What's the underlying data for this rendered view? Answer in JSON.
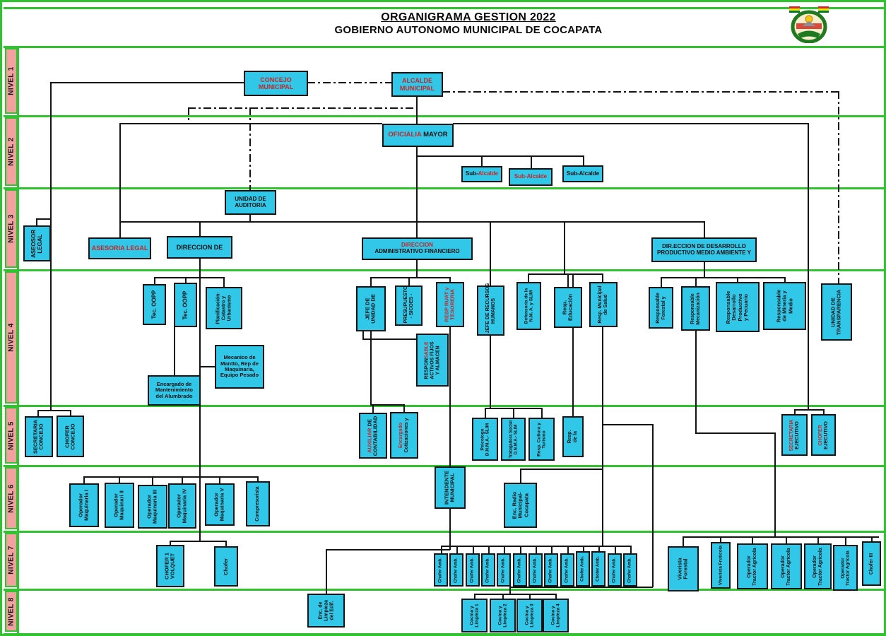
{
  "header": {
    "title_line1": "ORGANIGRAMA GESTION 2022",
    "title_line2": "GOBIERNO AUTONOMO MUNICIPAL DE COCAPATA"
  },
  "logo": {
    "name": "escudo-municipal-cocapata"
  },
  "levels": [
    "NIVEL 1",
    "NIVEL 2",
    "NIVEL 3",
    "NIVEL 4",
    "NIVEL 5",
    "NIVEL 6",
    "NIVEL 7",
    "NIVEL 8"
  ],
  "palette": {
    "box_fill": "#31c7e8",
    "box_border": "#141414",
    "level_fill": "#f2a0a0",
    "grid_green": "#2fc42f",
    "text_red": "#c62828",
    "text_black": "#101010"
  },
  "nodes": [
    {
      "id": "concejo-municipal",
      "l": [
        [
          [
            "CONCEJO",
            "r"
          ]
        ],
        [
          [
            "MUNICIPAL",
            "r"
          ]
        ]
      ]
    },
    {
      "id": "alcalde-municipal",
      "l": [
        [
          [
            "ALCALDE",
            "r"
          ]
        ],
        [
          [
            "MUNICIPAL",
            "r"
          ]
        ]
      ]
    },
    {
      "id": "oficialia-mayor",
      "l": [
        [
          [
            "OFICIALIA ",
            "r"
          ],
          [
            "MAYOR",
            "k"
          ]
        ]
      ]
    },
    {
      "id": "sub-alcalde-1",
      "l": [
        [
          [
            "Sub-",
            "k"
          ],
          [
            "Alcalde",
            "r"
          ]
        ]
      ]
    },
    {
      "id": "sub-alcalde-2",
      "l": [
        [
          [
            "Sub-Alcalde",
            "r"
          ]
        ]
      ]
    },
    {
      "id": "sub-alcalde-3",
      "l": [
        [
          [
            "Sub-Alcalde",
            "k"
          ]
        ]
      ]
    },
    {
      "id": "asesor-legal",
      "l": [
        [
          [
            "ASEOSOR",
            "k"
          ]
        ],
        [
          [
            "LEGAL",
            "k"
          ]
        ]
      ]
    },
    {
      "id": "asesoria-legal",
      "l": [
        [
          [
            "ASESORIA LEGAL",
            "r"
          ]
        ]
      ]
    },
    {
      "id": "direccion-de",
      "l": [
        [
          [
            "DIRECCION DE",
            "k"
          ]
        ]
      ]
    },
    {
      "id": "unidad-auditoria",
      "l": [
        [
          [
            "UNIDAD DE",
            "k"
          ]
        ],
        [
          [
            "AUDITORIA",
            "k"
          ]
        ]
      ]
    },
    {
      "id": "direccion-adm-financiero",
      "l": [
        [
          [
            "DIRECCION",
            "r"
          ]
        ],
        [
          [
            "ADMINISTRATIVO FINANCIERO",
            "k"
          ]
        ]
      ]
    },
    {
      "id": "direccion-desarrollo",
      "l": [
        [
          [
            "DIR.ECCION DE DESARROLLO",
            "k"
          ]
        ],
        [
          [
            "PRODUCTIVO MEDIO  AMBIENTE Y",
            "k"
          ]
        ]
      ]
    },
    {
      "id": "tec-oopp-1",
      "l": [
        [
          [
            "Tec. OOPP",
            "k"
          ]
        ]
      ]
    },
    {
      "id": "tec-oopp-2",
      "l": [
        [
          [
            "Tec. OOPP",
            "k"
          ]
        ]
      ]
    },
    {
      "id": "planificacion-catastro",
      "l": [
        [
          [
            "Planificación-",
            "k"
          ]
        ],
        [
          [
            "Catastro y",
            "k"
          ]
        ],
        [
          [
            "Urbanismo",
            "k"
          ]
        ]
      ]
    },
    {
      "id": "mecanico-mantto",
      "l": [
        [
          [
            "Mecanico de",
            "k"
          ]
        ],
        [
          [
            "Mantto,  Rep de",
            "k"
          ]
        ],
        [
          [
            "Maquinaria,",
            "k"
          ]
        ],
        [
          [
            "Equipo Pesado",
            "k"
          ]
        ]
      ]
    },
    {
      "id": "encargado-alumbrado",
      "l": [
        [
          [
            "Encargado de",
            "k"
          ]
        ],
        [
          [
            "Mantenimiento",
            "k"
          ]
        ],
        [
          [
            "del Alumbrado",
            "k"
          ]
        ]
      ]
    },
    {
      "id": "jefe-unidad",
      "l": [
        [
          [
            "JEFE DE",
            "k"
          ]
        ],
        [
          [
            "UNIDAD DE",
            "k"
          ]
        ]
      ]
    },
    {
      "id": "presupuesto-sicoes",
      "l": [
        [
          [
            "PRESUPUESTO",
            "k"
          ]
        ],
        [
          [
            "-  SICOES -",
            "k"
          ]
        ]
      ]
    },
    {
      "id": "resp-ruat-tesoreria",
      "l": [
        [
          [
            "RESP RUAT y",
            "r"
          ]
        ],
        [
          [
            "TESORERIA",
            "r"
          ]
        ]
      ]
    },
    {
      "id": "jefe-rrhh",
      "l": [
        [
          [
            "JEFE DE RECURSOS",
            "k"
          ]
        ],
        [
          [
            "HUMANOS",
            "k"
          ]
        ]
      ]
    },
    {
      "id": "resp-activos-fijos",
      "l": [
        [
          [
            "RESPON",
            "k"
          ],
          [
            "SABLE",
            "r"
          ]
        ],
        [
          [
            "ACTIVOS FIJOS",
            "k"
          ]
        ],
        [
          [
            "Y ALMACEN",
            "k"
          ]
        ]
      ]
    },
    {
      "id": "defensoria-slim",
      "l": [
        [
          [
            "Defensoria de la",
            "k"
          ]
        ],
        [
          [
            "N.M. A. y SLIM",
            "k"
          ]
        ]
      ]
    },
    {
      "id": "resp-educacion",
      "l": [
        [
          [
            "Resp.",
            "k"
          ]
        ],
        [
          [
            "Educación",
            "k"
          ]
        ]
      ]
    },
    {
      "id": "resp-salud",
      "l": [
        [
          [
            "Resp. Municipal",
            "k"
          ]
        ],
        [
          [
            "de Salud",
            "k"
          ]
        ]
      ]
    },
    {
      "id": "resp-forestal",
      "l": [
        [
          [
            "Responsable",
            "k"
          ]
        ],
        [
          [
            "Forestal y",
            "k"
          ]
        ]
      ]
    },
    {
      "id": "resp-mecanizacion",
      "l": [
        [
          [
            "Responsable",
            "k"
          ]
        ],
        [
          [
            "Mecanización",
            "k"
          ]
        ]
      ]
    },
    {
      "id": "resp-desarrollo-productivo",
      "l": [
        [
          [
            "Responsable",
            "k"
          ]
        ],
        [
          [
            "Desarrollo",
            "k"
          ]
        ],
        [
          [
            "Productivo",
            "k"
          ]
        ],
        [
          [
            "y  Pecuario",
            "k"
          ]
        ]
      ]
    },
    {
      "id": "resp-mineria",
      "l": [
        [
          [
            "Responsable",
            "k"
          ]
        ],
        [
          [
            "de Minería y",
            "k"
          ]
        ],
        [
          [
            "Medio",
            "k"
          ]
        ]
      ]
    },
    {
      "id": "unidad-transparencia",
      "l": [
        [
          [
            "UNIDAD DE",
            "k"
          ]
        ],
        [
          [
            "TRANSPARENCIA",
            "k"
          ]
        ]
      ]
    },
    {
      "id": "secretaria-concejo",
      "l": [
        [
          [
            "SECRETARIA",
            "k"
          ]
        ],
        [
          [
            "CONCEJO",
            "k"
          ]
        ]
      ]
    },
    {
      "id": "chofer-concejo",
      "l": [
        [
          [
            "CHOFER",
            "k"
          ]
        ],
        [
          [
            "CONCEJO",
            "k"
          ]
        ]
      ]
    },
    {
      "id": "auxiliar-contabilidad",
      "l": [
        [
          [
            "AUXILIAR",
            "r"
          ],
          [
            " DE",
            "k"
          ]
        ],
        [
          [
            "CONTABILIDAD",
            "k"
          ]
        ]
      ]
    },
    {
      "id": "encargado-cotizaciones",
      "l": [
        [
          [
            "Encargado",
            "r"
          ]
        ],
        [
          [
            "Cotizaciones y",
            "k"
          ]
        ]
      ]
    },
    {
      "id": "psicologo-slim",
      "l": [
        [
          [
            "Psicologo",
            "k"
          ]
        ],
        [
          [
            "D.N.M.A.- SLIM",
            "k"
          ]
        ]
      ]
    },
    {
      "id": "trabajadora-social-slim",
      "l": [
        [
          [
            "Trabajadora Social",
            "k"
          ]
        ],
        [
          [
            "D.N.M.A.- SLIM",
            "k"
          ]
        ]
      ]
    },
    {
      "id": "resp-cultura-turismo",
      "l": [
        [
          [
            "Resp. Cultura y",
            "k"
          ]
        ],
        [
          [
            "Turismo",
            "k"
          ]
        ]
      ]
    },
    {
      "id": "resp-de-la",
      "l": [
        [
          [
            "Resp.",
            "k"
          ]
        ],
        [
          [
            "de la",
            "k"
          ]
        ]
      ]
    },
    {
      "id": "secretaria-ejecutivo",
      "l": [
        [
          [
            "SECRETARIA",
            "r"
          ]
        ],
        [
          [
            "EJECUTIVO",
            "k"
          ]
        ]
      ]
    },
    {
      "id": "chofer-ejecutivo",
      "l": [
        [
          [
            "CHOFER",
            "r"
          ]
        ],
        [
          [
            "EJECUTIVO",
            "k"
          ]
        ]
      ]
    },
    {
      "id": "operador-maquinaria-1",
      "l": [
        [
          [
            "Operador",
            "k"
          ]
        ],
        [
          [
            "Maquinaria I",
            "k"
          ]
        ]
      ]
    },
    {
      "id": "operador-maquinaria-2",
      "l": [
        [
          [
            "Operador",
            "k"
          ]
        ],
        [
          [
            "Maquinari  II",
            "k"
          ]
        ]
      ]
    },
    {
      "id": "operador-maquinaria-3",
      "l": [
        [
          [
            "Operador",
            "k"
          ]
        ],
        [
          [
            "Maquinaria III",
            "k"
          ]
        ]
      ]
    },
    {
      "id": "operador-maquinaria-4",
      "l": [
        [
          [
            "Operador",
            "k"
          ]
        ],
        [
          [
            "Maquinaria IV",
            "k"
          ]
        ]
      ]
    },
    {
      "id": "operador-maquinaria-5",
      "l": [
        [
          [
            "Operador",
            "k"
          ]
        ],
        [
          [
            "Maquinaria V",
            "k"
          ]
        ]
      ]
    },
    {
      "id": "compresorista",
      "l": [
        [
          [
            "Compresorista",
            "k"
          ]
        ]
      ]
    },
    {
      "id": "intendente-municipal",
      "l": [
        [
          [
            "INTENDENTE",
            "k"
          ]
        ],
        [
          [
            "MUNICIPAL",
            "k"
          ]
        ]
      ]
    },
    {
      "id": "enc-radio-municipal",
      "l": [
        [
          [
            "Enc.  Radio",
            "k"
          ]
        ],
        [
          [
            "Municipal-",
            "k"
          ]
        ],
        [
          [
            "Cocapata",
            "k"
          ]
        ]
      ]
    },
    {
      "id": "chofer-1-volquete",
      "l": [
        [
          [
            "CHOFER 1",
            "k"
          ]
        ],
        [
          [
            "VOLQUET",
            "k"
          ]
        ]
      ]
    },
    {
      "id": "chofer",
      "l": [
        [
          [
            "Chofer",
            "k"
          ]
        ]
      ]
    },
    {
      "id": "chofer-amb-1",
      "l": [
        [
          [
            "Chofer Amb.",
            "k"
          ]
        ]
      ]
    },
    {
      "id": "chofer-amb-2",
      "l": [
        [
          [
            "Chofer Amb.",
            "k"
          ]
        ]
      ]
    },
    {
      "id": "chofer-amb-3",
      "l": [
        [
          [
            "Chofer Amb.",
            "k"
          ]
        ]
      ]
    },
    {
      "id": "chofer-amb-4",
      "l": [
        [
          [
            "Chofer Amb.",
            "k"
          ]
        ]
      ]
    },
    {
      "id": "chofer-amb-5",
      "l": [
        [
          [
            "Chofer Amb.",
            "k"
          ]
        ]
      ]
    },
    {
      "id": "chofer-amb-6",
      "l": [
        [
          [
            "Chofer Amb.",
            "k"
          ]
        ]
      ]
    },
    {
      "id": "chofer-amb-7",
      "l": [
        [
          [
            "Chofer Amb.",
            "k"
          ]
        ]
      ]
    },
    {
      "id": "chofer-amb-8",
      "l": [
        [
          [
            "Chofer Amb.",
            "k"
          ]
        ]
      ]
    },
    {
      "id": "chofer-amb-9",
      "l": [
        [
          [
            "Chofer Amb.",
            "k"
          ]
        ]
      ]
    },
    {
      "id": "chofer-amb-10",
      "l": [
        [
          [
            "Chofer Amb.",
            "k"
          ]
        ]
      ]
    },
    {
      "id": "chofer-amb-11",
      "l": [
        [
          [
            "Chofer Amb.",
            "k"
          ]
        ]
      ]
    },
    {
      "id": "chofer-amb-12",
      "l": [
        [
          [
            "Chofer Amb.",
            "k"
          ]
        ]
      ]
    },
    {
      "id": "chofer-amb-13",
      "l": [
        [
          [
            "Chofer Amb.",
            "k"
          ]
        ]
      ]
    },
    {
      "id": "viverista-forestal",
      "l": [
        [
          [
            "Viverista",
            "k"
          ]
        ],
        [
          [
            "Forestal",
            "k"
          ]
        ]
      ]
    },
    {
      "id": "viverista-fruticola",
      "l": [
        [
          [
            "Viverista Fruticola",
            "k"
          ]
        ]
      ]
    },
    {
      "id": "operador-tractor-1",
      "l": [
        [
          [
            "Operador",
            "k"
          ]
        ],
        [
          [
            "Tractor Agricola",
            "k"
          ]
        ]
      ]
    },
    {
      "id": "operador-tractor-2",
      "l": [
        [
          [
            "Operador",
            "k"
          ]
        ],
        [
          [
            "Tractor Agricola",
            "k"
          ]
        ]
      ]
    },
    {
      "id": "operador-tractor-3",
      "l": [
        [
          [
            "Operador",
            "k"
          ]
        ],
        [
          [
            "Tractor Agricola",
            "k"
          ]
        ]
      ]
    },
    {
      "id": "operador-tractor-4",
      "l": [
        [
          [
            "Operador",
            "k"
          ]
        ],
        [
          [
            "Tractor Agricola",
            "k"
          ]
        ]
      ]
    },
    {
      "id": "chofer-iii",
      "l": [
        [
          [
            "Chofer  III",
            "k"
          ]
        ]
      ]
    },
    {
      "id": "enc-limpieza-edificio",
      "l": [
        [
          [
            "Enc. de",
            "k"
          ]
        ],
        [
          [
            "Limpieza",
            "k"
          ]
        ],
        [
          [
            "del Edif.",
            "k"
          ]
        ]
      ]
    },
    {
      "id": "cocina-limpieza-1",
      "l": [
        [
          [
            "Cocina y",
            "k"
          ]
        ],
        [
          [
            "Limpieza 1",
            "k"
          ]
        ]
      ]
    },
    {
      "id": "cocina-limpieza-2",
      "l": [
        [
          [
            "Cocina y",
            "k"
          ]
        ],
        [
          [
            "Limpieza 2",
            "k"
          ]
        ]
      ]
    },
    {
      "id": "cocina-limpieza-3",
      "l": [
        [
          [
            "Cocina y",
            "k"
          ]
        ],
        [
          [
            "Limpieza 3",
            "k"
          ]
        ]
      ]
    },
    {
      "id": "cocina-limpieza-4",
      "l": [
        [
          [
            "Cocina y",
            "k"
          ]
        ],
        [
          [
            "Limpieza 4",
            "k"
          ]
        ]
      ]
    }
  ]
}
